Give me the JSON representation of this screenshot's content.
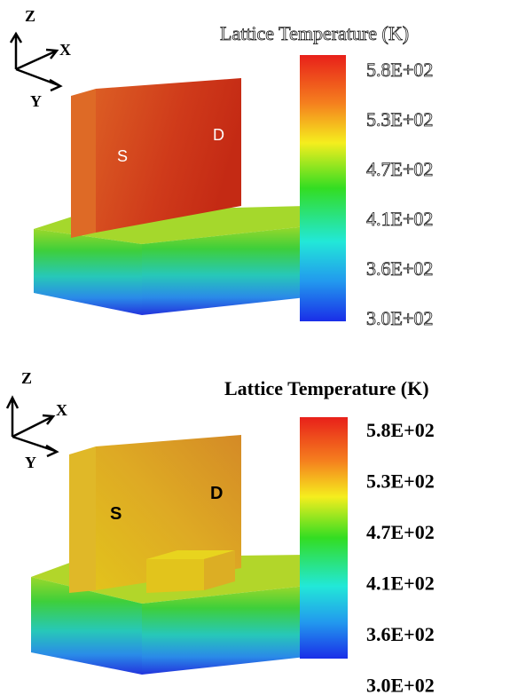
{
  "panels": [
    {
      "axes": {
        "z": "Z",
        "x": "X",
        "y": "Y"
      },
      "regions": {
        "source": "S",
        "drain": "D"
      },
      "colorbar": {
        "title": "Lattice Temperature (K)",
        "labels": [
          "5.8E+02",
          "5.3E+02",
          "4.7E+02",
          "4.1E+02",
          "3.6E+02",
          "3.0E+02"
        ]
      }
    },
    {
      "axes": {
        "z": "Z",
        "x": "X",
        "y": "Y"
      },
      "regions": {
        "source": "S",
        "drain": "D"
      },
      "colorbar": {
        "title": "Lattice Temperature (K)",
        "labels": [
          "5.8E+02",
          "5.3E+02",
          "4.7E+02",
          "4.1E+02",
          "3.6E+02",
          "3.0E+02"
        ]
      }
    }
  ]
}
